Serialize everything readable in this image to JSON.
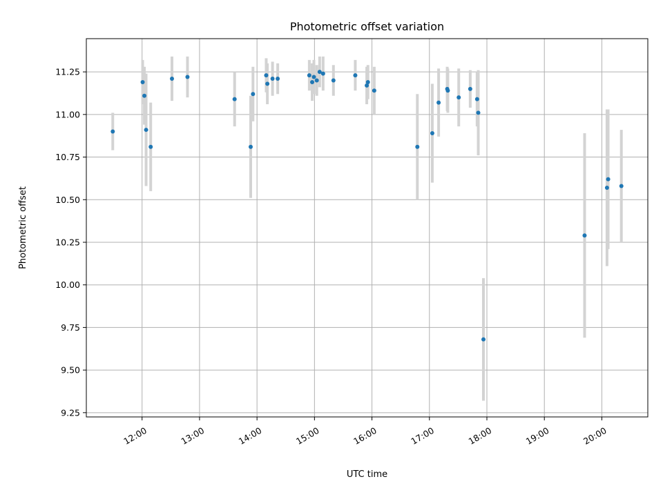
{
  "chart_data": {
    "type": "scatter",
    "title": "Photometric offset variation",
    "xlabel": "UTC time",
    "ylabel": "Photometric offset",
    "x_unit": "hours UTC",
    "xlim": [
      11.03,
      20.8
    ],
    "ylim": [
      9.225,
      11.445
    ],
    "x_ticks": [
      {
        "value": 12,
        "label": "12:00"
      },
      {
        "value": 13,
        "label": "13:00"
      },
      {
        "value": 14,
        "label": "14:00"
      },
      {
        "value": 15,
        "label": "15:00"
      },
      {
        "value": 16,
        "label": "16:00"
      },
      {
        "value": 17,
        "label": "17:00"
      },
      {
        "value": 18,
        "label": "18:00"
      },
      {
        "value": 19,
        "label": "19:00"
      },
      {
        "value": 20,
        "label": "20:00"
      }
    ],
    "y_ticks": [
      {
        "value": 9.25,
        "label": "9.25"
      },
      {
        "value": 9.5,
        "label": "9.50"
      },
      {
        "value": 9.75,
        "label": "9.75"
      },
      {
        "value": 10.0,
        "label": "10.00"
      },
      {
        "value": 10.25,
        "label": "10.25"
      },
      {
        "value": 10.5,
        "label": "10.50"
      },
      {
        "value": 10.75,
        "label": "10.75"
      },
      {
        "value": 11.0,
        "label": "11.00"
      },
      {
        "value": 11.25,
        "label": "11.25"
      }
    ],
    "grid": true,
    "colors": {
      "point": "#1f77b4",
      "errorbar": "#d3d3d3",
      "grid": "#b0b0b0"
    },
    "points": [
      {
        "x": 11.49,
        "y": 10.9,
        "err": 0.11
      },
      {
        "x": 12.01,
        "y": 11.19,
        "err": 0.13
      },
      {
        "x": 12.04,
        "y": 11.11,
        "err": 0.17
      },
      {
        "x": 12.07,
        "y": 10.91,
        "err": 0.33
      },
      {
        "x": 12.15,
        "y": 10.81,
        "err": 0.26
      },
      {
        "x": 12.52,
        "y": 11.21,
        "err": 0.13
      },
      {
        "x": 12.79,
        "y": 11.22,
        "err": 0.12
      },
      {
        "x": 13.61,
        "y": 11.09,
        "err": 0.16
      },
      {
        "x": 13.89,
        "y": 10.81,
        "err": 0.3
      },
      {
        "x": 13.93,
        "y": 11.12,
        "err": 0.16
      },
      {
        "x": 14.16,
        "y": 11.23,
        "err": 0.1
      },
      {
        "x": 14.18,
        "y": 11.18,
        "err": 0.12
      },
      {
        "x": 14.27,
        "y": 11.21,
        "err": 0.1
      },
      {
        "x": 14.36,
        "y": 11.21,
        "err": 0.09
      },
      {
        "x": 14.91,
        "y": 11.23,
        "err": 0.09
      },
      {
        "x": 14.96,
        "y": 11.19,
        "err": 0.11
      },
      {
        "x": 14.99,
        "y": 11.22,
        "err": 0.1
      },
      {
        "x": 15.04,
        "y": 11.2,
        "err": 0.09
      },
      {
        "x": 15.09,
        "y": 11.25,
        "err": 0.09
      },
      {
        "x": 15.15,
        "y": 11.24,
        "err": 0.1
      },
      {
        "x": 15.33,
        "y": 11.2,
        "err": 0.09
      },
      {
        "x": 15.71,
        "y": 11.23,
        "err": 0.09
      },
      {
        "x": 15.91,
        "y": 11.17,
        "err": 0.11
      },
      {
        "x": 15.93,
        "y": 11.19,
        "err": 0.1
      },
      {
        "x": 16.04,
        "y": 11.14,
        "err": 0.14
      },
      {
        "x": 16.79,
        "y": 10.81,
        "err": 0.31
      },
      {
        "x": 17.05,
        "y": 10.89,
        "err": 0.29
      },
      {
        "x": 17.16,
        "y": 11.07,
        "err": 0.2
      },
      {
        "x": 17.31,
        "y": 11.15,
        "err": 0.13
      },
      {
        "x": 17.32,
        "y": 11.14,
        "err": 0.13
      },
      {
        "x": 17.51,
        "y": 11.1,
        "err": 0.17
      },
      {
        "x": 17.71,
        "y": 11.15,
        "err": 0.11
      },
      {
        "x": 17.83,
        "y": 11.09,
        "err": 0.16
      },
      {
        "x": 17.85,
        "y": 11.01,
        "err": 0.25
      },
      {
        "x": 17.94,
        "y": 9.68,
        "err": 0.36
      },
      {
        "x": 19.7,
        "y": 10.29,
        "err": 0.6
      },
      {
        "x": 20.09,
        "y": 10.57,
        "err": 0.46
      },
      {
        "x": 20.11,
        "y": 10.62,
        "err": 0.41
      },
      {
        "x": 20.34,
        "y": 10.58,
        "err": 0.33
      }
    ]
  }
}
